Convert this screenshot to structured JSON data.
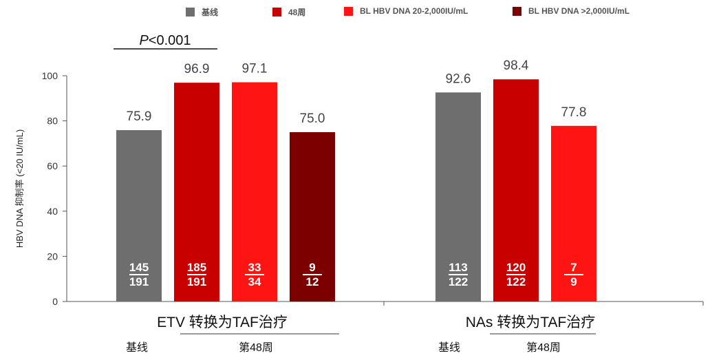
{
  "legend": [
    {
      "label": "基线",
      "color": "#6e6e6e"
    },
    {
      "label": "48周",
      "color": "#c80000"
    },
    {
      "label": "BL HBV DNA 20-2,000IU/mL",
      "color": "#ff1414"
    },
    {
      "label": "BL HBV DNA >2,000IU/mL",
      "color": "#7d0000"
    }
  ],
  "chart_data": {
    "type": "bar",
    "ylabel": "HBV DNA 抑制率 (<20 IU/mL)",
    "ylim": [
      0,
      100
    ],
    "yticks": [
      0,
      20,
      40,
      60,
      80,
      100
    ],
    "groups": [
      {
        "name": "ETV 转换为TAF治疗",
        "sub_labels": [
          "基线",
          "第48周"
        ],
        "bars": [
          {
            "series": "基线",
            "value": 75.9,
            "label": "75.9",
            "num": "145",
            "den": "191",
            "color": "#6e6e6e"
          },
          {
            "series": "48周",
            "value": 96.9,
            "label": "96.9",
            "num": "185",
            "den": "191",
            "color": "#c80000"
          },
          {
            "series": "BL HBV DNA 20-2,000IU/mL",
            "value": 97.1,
            "label": "97.1",
            "num": "33",
            "den": "34",
            "color": "#ff1414"
          },
          {
            "series": "BL HBV DNA >2,000IU/mL",
            "value": 75.0,
            "label": "75.0",
            "num": "9",
            "den": "12",
            "color": "#7d0000"
          }
        ]
      },
      {
        "name": "NAs 转换为TAF治疗",
        "sub_labels": [
          "基线",
          "第48周"
        ],
        "bars": [
          {
            "series": "基线",
            "value": 92.6,
            "label": "92.6",
            "num": "113",
            "den": "122",
            "color": "#6e6e6e"
          },
          {
            "series": "48周",
            "value": 98.4,
            "label": "98.4",
            "num": "120",
            "den": "122",
            "color": "#c80000"
          },
          {
            "series": "BL HBV DNA 20-2,000IU/mL",
            "value": 77.8,
            "label": "77.8",
            "num": "7",
            "den": "9",
            "color": "#ff1414"
          }
        ]
      }
    ],
    "annotation": {
      "italic": "P",
      "rest": "<0.001"
    }
  }
}
